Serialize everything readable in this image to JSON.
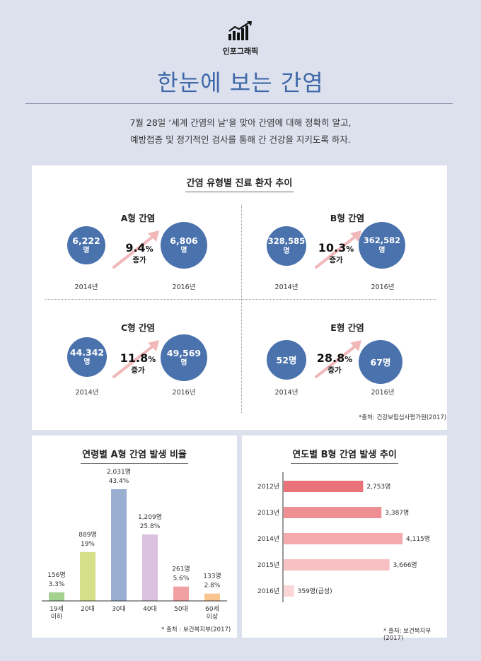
{
  "header": {
    "icon": "rising-bar-chart-icon",
    "category": "인포그래픽",
    "title": "한눈에 보는 간염",
    "intro_lines": [
      "7월 28일 ‘세계 간염의 날’을 맞아 간염에 대해 정확히 알고,",
      "예방접종 및 정기적인 검사를 통해 간 건강을 지키도록 하자."
    ]
  },
  "colors": {
    "title": "#3f68a8",
    "circle": "#4a72ad",
    "arrow": "#f1b7b9"
  },
  "trend_panel": {
    "title": "간염 유형별 진료 환자 추이",
    "source": "*출처: 건강보험심사평가원(2017)",
    "types": [
      {
        "name": "A형 간염",
        "start_value": "6,222",
        "start_unit": "명",
        "start_year": "2014년",
        "end_value": "6,806",
        "end_unit": "명",
        "end_year": "2016년",
        "pct": "9.4",
        "pct_unit": "%",
        "increase": "증가"
      },
      {
        "name": "B형 간염",
        "start_value": "328,585",
        "start_unit": "명",
        "start_year": "2014년",
        "end_value": "362,582",
        "end_unit": "명",
        "end_year": "2016년",
        "pct": "10.3",
        "pct_unit": "%",
        "increase": "증가"
      },
      {
        "name": "C형 간염",
        "start_value": "44.342",
        "start_unit": "명",
        "start_year": "2014년",
        "end_value": "49,569",
        "end_unit": "명",
        "end_year": "2016년",
        "pct": "11.8",
        "pct_unit": "%",
        "increase": "증가"
      },
      {
        "name": "E형 간염",
        "start_value": "52명",
        "start_unit": "",
        "start_year": "2014년",
        "end_value": "67명",
        "end_unit": "",
        "end_year": "2016년",
        "pct": "28.8",
        "pct_unit": "%",
        "increase": "증가"
      }
    ]
  },
  "chart_data": [
    {
      "type": "bar",
      "title": "연령별 A형 간염 발생 비율",
      "categories": [
        "19세 이하",
        "20대",
        "30대",
        "40대",
        "50대",
        "60세 이상"
      ],
      "category_lines": [
        [
          "19세",
          "이하"
        ],
        [
          "20대"
        ],
        [
          "30대"
        ],
        [
          "40대"
        ],
        [
          "50대"
        ],
        [
          "60세",
          "이상"
        ]
      ],
      "values": [
        156,
        889,
        2031,
        1209,
        261,
        133
      ],
      "count_labels": [
        "156명",
        "889명",
        "2,031명",
        "1,209명",
        "261명",
        "133명"
      ],
      "percent_labels": [
        "3.3%",
        "19%",
        "43.4%",
        "25.8%",
        "5.6%",
        "2.8%"
      ],
      "colors": [
        "#a5d28f",
        "#d6df8a",
        "#9aaed1",
        "#dcc2e2",
        "#f2a1a3",
        "#f8c591"
      ],
      "xlabel": "",
      "ylabel": "",
      "ylim": [
        0,
        2031
      ],
      "grid": false,
      "source": "* 출처 : 보건복지부(2017)"
    },
    {
      "type": "bar",
      "orientation": "horizontal",
      "title": "연도별 B형 간염 발생 추이",
      "categories": [
        "2012년",
        "2013년",
        "2014년",
        "2015년",
        "2016년"
      ],
      "values": [
        2753,
        3387,
        4115,
        3666,
        359
      ],
      "value_labels": [
        "2,753명",
        "3,387명",
        "4,115명",
        "3,666명",
        "359명(급성)"
      ],
      "colors": [
        "#e97379",
        "#ef8f93",
        "#f4aaad",
        "#f7c1c3",
        "#fad5d6"
      ],
      "xlabel": "",
      "ylabel": "",
      "xlim": [
        0,
        4115
      ],
      "grid": false,
      "source": "* 출처: 보건복지부(2017)"
    }
  ]
}
